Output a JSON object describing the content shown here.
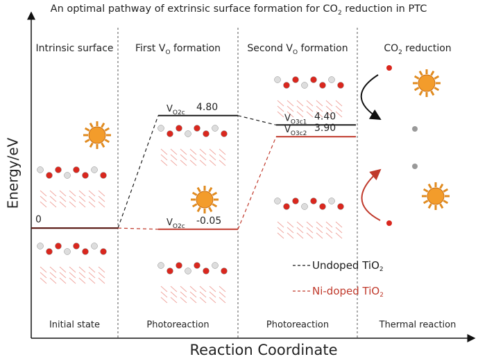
{
  "chart_data": {
    "type": "energy",
    "title": [
      "An optimal pathway of extrinsic surface formation for CO",
      "2",
      " reduction in PTC"
    ],
    "x_label": "Reaction Coordinate",
    "y_label": "Energy/eV",
    "ylim": [
      -4.7,
      9.2
    ],
    "stages": [
      {
        "header": [
          "Intrinsic surface"
        ],
        "footer": "Initial state"
      },
      {
        "header": [
          "First V",
          "O",
          " formation"
        ],
        "footer": "Photoreaction"
      },
      {
        "header": [
          "Second V",
          "O",
          " formation"
        ],
        "footer": "Photoreaction"
      },
      {
        "header": [
          "CO",
          "2",
          " reduction"
        ],
        "footer": "Thermal reaction"
      }
    ],
    "series": [
      {
        "name": [
          "Undoped TiO",
          "2"
        ],
        "color": "#1a1a1a",
        "values": [
          0,
          4.8,
          4.4
        ],
        "value_labels": [
          "0",
          "4.80",
          "4.40"
        ],
        "state_labels": [
          null,
          [
            "V",
            "O2c"
          ],
          [
            "V",
            "O3c1"
          ]
        ]
      },
      {
        "name": [
          "Ni-doped TiO",
          "2"
        ],
        "color": "#c0392b",
        "values": [
          0,
          -0.05,
          3.9
        ],
        "value_labels": [
          null,
          "-0.05",
          "3.90"
        ],
        "state_labels": [
          null,
          [
            "V",
            "O2c"
          ],
          [
            "V",
            "O3c2"
          ]
        ]
      }
    ]
  }
}
